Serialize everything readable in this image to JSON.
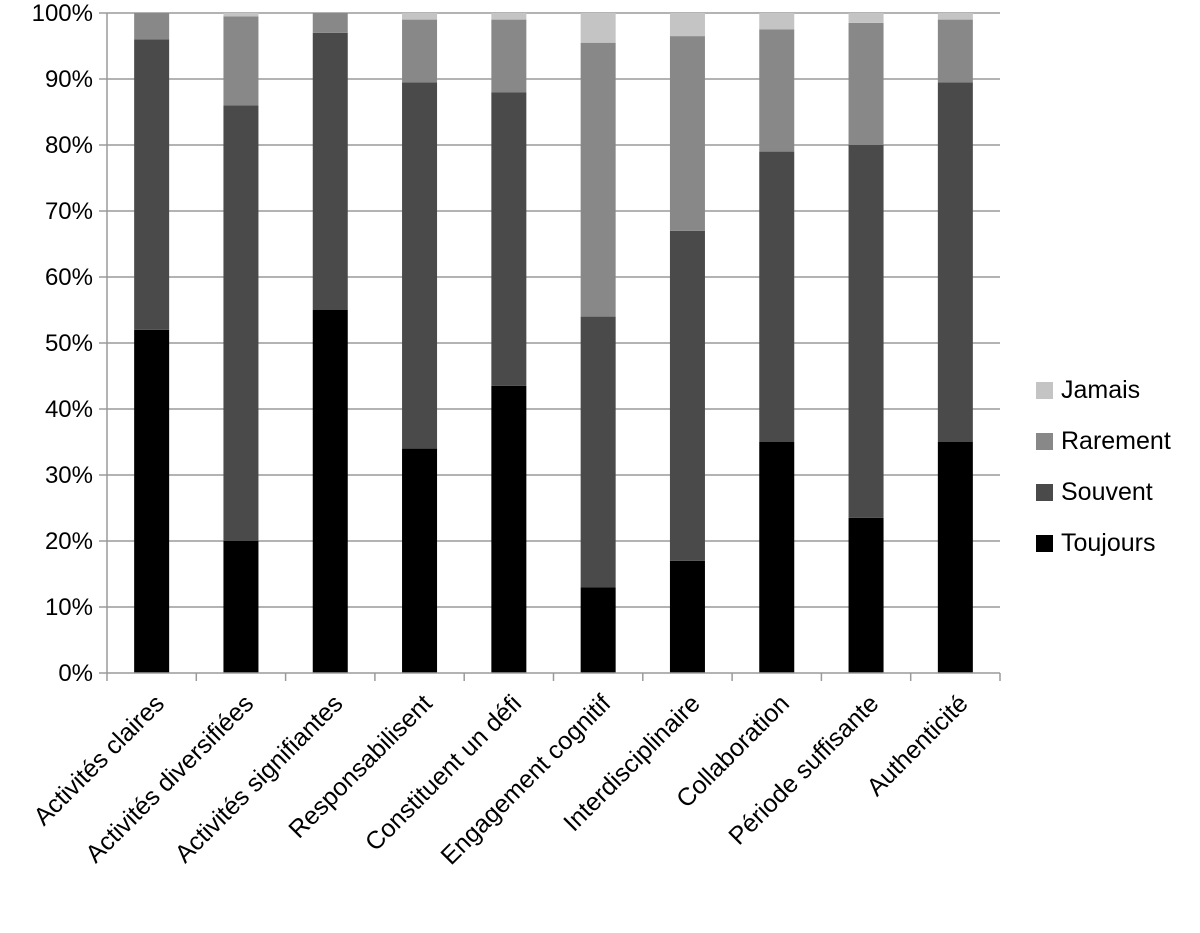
{
  "chart_data": {
    "type": "bar",
    "stacked": true,
    "percent": true,
    "title": "",
    "xlabel": "",
    "ylabel": "",
    "ylim": [
      0,
      100
    ],
    "yticks": [
      0,
      10,
      20,
      30,
      40,
      50,
      60,
      70,
      80,
      90,
      100
    ],
    "ytick_labels": [
      "0%",
      "10%",
      "20%",
      "30%",
      "40%",
      "50%",
      "60%",
      "70%",
      "80%",
      "90%",
      "100%"
    ],
    "grid": "horizontal",
    "legend_position": "right",
    "categories": [
      "Activités claires",
      "Activités diversifiées",
      "Activités signifiantes",
      "Responsabilisent",
      "Constituent un défi",
      "Engagement cognitif",
      "Interdisciplinaire",
      "Collaboration",
      "Période suffisante",
      "Authenticité"
    ],
    "series": [
      {
        "name": "Toujours",
        "color": "#000000",
        "values": [
          52,
          20,
          55,
          34,
          43.5,
          13,
          17,
          35,
          23.5,
          35
        ]
      },
      {
        "name": "Souvent",
        "color": "#4a4a4a",
        "values": [
          44,
          66,
          42,
          55.5,
          44.5,
          41,
          50,
          44,
          56.5,
          54.5
        ]
      },
      {
        "name": "Rarement",
        "color": "#888888",
        "values": [
          4,
          13.5,
          3,
          9.5,
          11,
          41.5,
          29.5,
          18.5,
          18.5,
          9.5
        ]
      },
      {
        "name": "Jamais",
        "color": "#c4c4c4",
        "values": [
          0,
          0.5,
          0,
          1,
          1,
          4.5,
          3.5,
          2.5,
          1.5,
          1
        ]
      }
    ],
    "legend_order": [
      "Jamais",
      "Rarement",
      "Souvent",
      "Toujours"
    ]
  }
}
